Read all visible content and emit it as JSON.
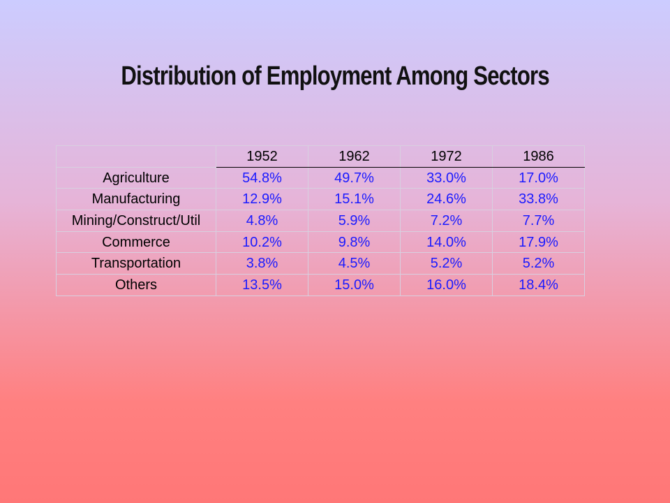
{
  "title": "Distribution of Employment Among Sectors",
  "table": {
    "columns": [
      "1952",
      "1962",
      "1972",
      "1986"
    ],
    "rows": [
      {
        "label": "Agriculture",
        "values": [
          "54.8%",
          "49.7%",
          "33.0%",
          "17.0%"
        ]
      },
      {
        "label": "Manufacturing",
        "values": [
          "12.9%",
          "15.1%",
          "24.6%",
          "33.8%"
        ]
      },
      {
        "label": "Mining/Construct/Util",
        "values": [
          "4.8%",
          "5.9%",
          "7.2%",
          "7.7%"
        ]
      },
      {
        "label": "Commerce",
        "values": [
          "10.2%",
          "9.8%",
          "14.0%",
          "17.9%"
        ]
      },
      {
        "label": "Transportation",
        "values": [
          "3.8%",
          "4.5%",
          "5.2%",
          "5.2%"
        ]
      },
      {
        "label": "Others",
        "values": [
          "13.5%",
          "15.0%",
          "16.0%",
          "18.4%"
        ]
      }
    ]
  }
}
